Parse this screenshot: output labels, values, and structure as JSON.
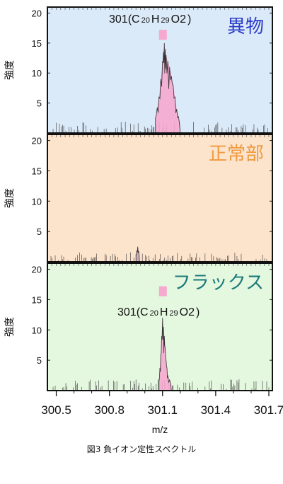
{
  "chart_data": {
    "type": "line",
    "x_axis": {
      "label": "m/z",
      "range": [
        300.45,
        301.72
      ],
      "ticks": [
        300.5,
        300.8,
        301.1,
        301.4,
        301.7
      ],
      "tick_labels": [
        "300.5",
        "300.8",
        "301.1",
        "301.4",
        "301.7"
      ]
    },
    "y_axis": {
      "label": "強度",
      "range": [
        0,
        21
      ],
      "ticks": [
        5,
        10,
        15,
        20
      ],
      "tick_labels": [
        "5",
        "10",
        "15",
        "20"
      ]
    },
    "panels": [
      {
        "title": "異物",
        "title_color": "#2e3ec8",
        "background": "#dbeaf8",
        "annotation": {
          "prefix": "301(C",
          "c": "20",
          "h_letter": "H",
          "h": "29",
          "o": "O2",
          "suffix": ")"
        },
        "reference_mz": 301.1,
        "highlight_color": "#f6a8cf",
        "peak": {
          "mz": [
            301.06,
            301.08,
            301.1,
            301.11,
            301.12,
            301.14,
            301.16,
            301.18,
            301.2
          ],
          "intensity": [
            2.5,
            6,
            12,
            15,
            13,
            11,
            8,
            4,
            1.5
          ]
        }
      },
      {
        "title": "正常部",
        "title_color": "#f09a3e",
        "background": "#fce3cc",
        "annotation": null,
        "peak": {
          "mz": [
            300.95,
            300.96,
            300.97
          ],
          "intensity": [
            1.2,
            2.5,
            1.0
          ]
        }
      },
      {
        "title": "フラックス",
        "title_color": "#1a7a7a",
        "background": "#e4f7df",
        "annotation": {
          "prefix": "301(C",
          "c": "20",
          "h_letter": "H",
          "h": "29",
          "o": "O2",
          "suffix": ")"
        },
        "reference_mz": 301.1,
        "highlight_color": "#f6a8cf",
        "peak": {
          "mz": [
            301.08,
            301.09,
            301.1,
            301.11,
            301.12,
            301.13,
            301.15
          ],
          "intensity": [
            1.5,
            6,
            12,
            9,
            5,
            2.5,
            1
          ]
        }
      }
    ]
  },
  "caption": "図3 負イオン定性スペクトル"
}
